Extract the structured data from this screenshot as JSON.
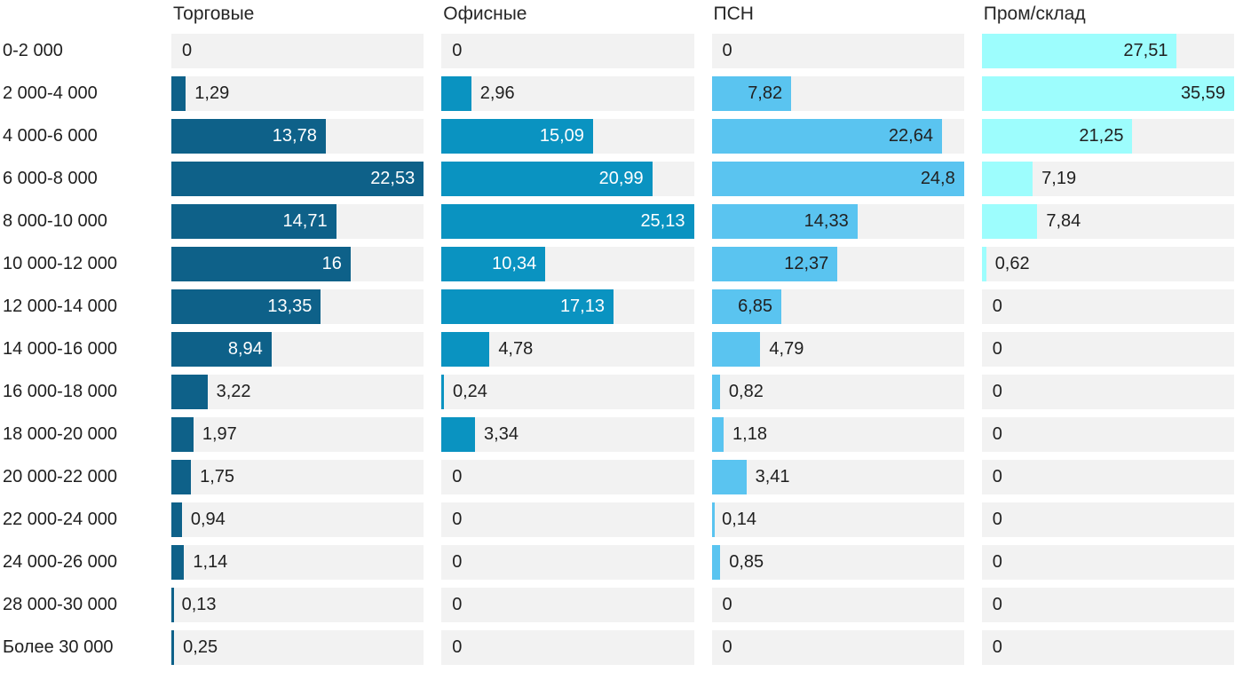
{
  "chart_data": {
    "type": "bar",
    "orientation": "horizontal",
    "title": "",
    "categories": [
      "0-2 000",
      "2 000-4 000",
      "4 000-6 000",
      "6 000-8 000",
      "8 000-10 000",
      "10 000-12 000",
      "12 000-14 000",
      "14 000-16 000",
      "16 000-18 000",
      "18 000-20 000",
      "20 000-22 000",
      "22 000-24 000",
      "24 000-26 000",
      "28 000-30 000",
      "Более 30 000"
    ],
    "series": [
      {
        "name": "Торговые",
        "color": "#0e6189",
        "label_color_inside": "#ffffff",
        "values": [
          0,
          1.29,
          13.78,
          22.53,
          14.71,
          16,
          13.35,
          8.94,
          3.22,
          1.97,
          1.75,
          0.94,
          1.14,
          0.13,
          0.25
        ]
      },
      {
        "name": "Офисные",
        "color": "#0a93c1",
        "label_color_inside": "#ffffff",
        "values": [
          0,
          2.96,
          15.09,
          20.99,
          25.13,
          10.34,
          17.13,
          4.78,
          0.24,
          3.34,
          0,
          0,
          0,
          0,
          0
        ]
      },
      {
        "name": "ПСН",
        "color": "#5ac4f0",
        "label_color_inside": "#212121",
        "values": [
          0,
          7.82,
          22.64,
          24.8,
          14.33,
          12.37,
          6.85,
          4.79,
          0.82,
          1.18,
          3.41,
          0.14,
          0.85,
          0,
          0
        ]
      },
      {
        "name": "Пром/склад",
        "color": "#9dfdfd",
        "label_color_inside": "#212121",
        "values": [
          27.51,
          35.59,
          21.25,
          7.19,
          7.84,
          0.62,
          0,
          0,
          0,
          0,
          0,
          0,
          0,
          0,
          0
        ]
      }
    ],
    "value_format": {
      "decimal_separator": ","
    },
    "track_color": "#f2f2f2",
    "text_color": "#1f1f1f",
    "scaling": "each series scaled so its max value fills the track width",
    "grid": false,
    "legend_position": "column headers on top"
  }
}
